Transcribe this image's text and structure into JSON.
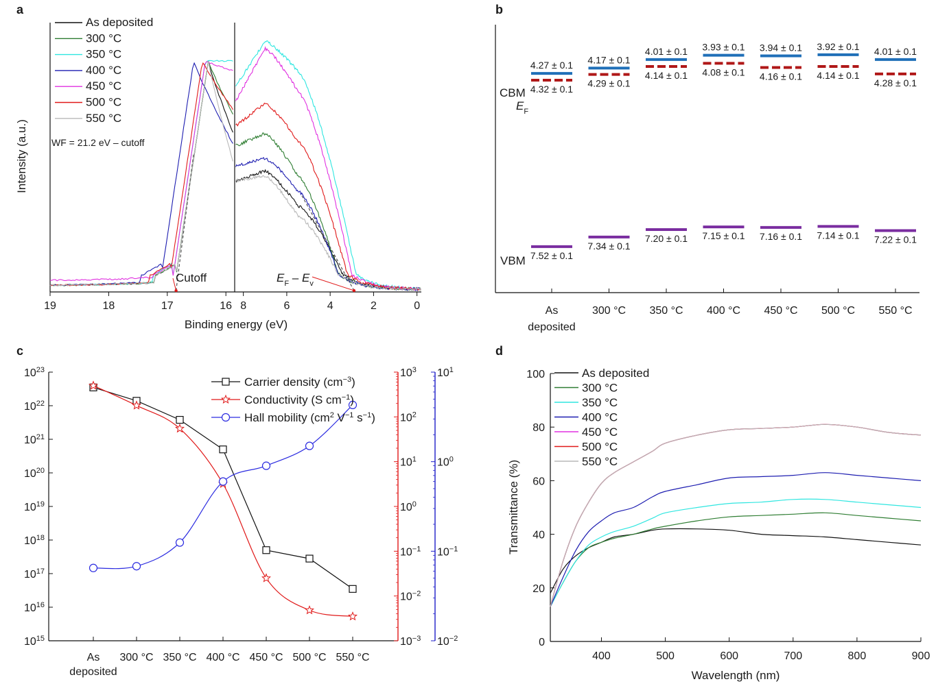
{
  "chart_data": [
    {
      "panel": "a",
      "type": "line",
      "title": "",
      "xlabel": "Binding energy (eV)",
      "ylabel": "Intensity (a.u.)",
      "xlim": [
        19,
        -0.2
      ],
      "xticks": [
        19,
        18,
        17,
        16,
        8,
        6,
        4,
        2,
        0
      ],
      "axis_break_at": 8.4,
      "annotation_wf": "WF = 21.2 eV – cutoff",
      "annotation_cutoff": "Cutoff",
      "annotation_ef_ev": "E",
      "annotation_ef_sub": "F",
      "annotation_minus": " – ",
      "annotation_ev": "E",
      "annotation_ev_sub": "v",
      "cutoff_energy": 16.85,
      "valence_edge_energy": 2.9,
      "series": [
        {
          "name": "As deposited",
          "color": "#111111",
          "cutoff": 16.85,
          "plateau": 0.73,
          "left_mid": 0.62,
          "right_start": 0.44,
          "right_hump": 0.48,
          "right_mid": 0.34,
          "edge": 3.4
        },
        {
          "name": "300 °C",
          "color": "#2e7d32",
          "cutoff": 16.85,
          "plateau": 0.76,
          "left_mid": 0.7,
          "right_start": 0.58,
          "right_hump": 0.63,
          "right_mid": 0.46,
          "edge": 3.6
        },
        {
          "name": "350 °C",
          "color": "#2ee6e0",
          "cutoff": 16.9,
          "plateau": 0.82,
          "left_mid": 0.92,
          "right_start": 0.82,
          "right_hump": 1.0,
          "right_mid": 0.88,
          "edge": 2.8
        },
        {
          "name": "400 °C",
          "color": "#1c1cb0",
          "cutoff": 17.1,
          "plateau": 0.74,
          "left_mid": 0.58,
          "right_start": 0.5,
          "right_hump": 0.53,
          "right_mid": 0.4,
          "edge": 3.6
        },
        {
          "name": "450 °C",
          "color": "#e030e0",
          "cutoff": 16.9,
          "plateau": 0.78,
          "left_mid": 0.88,
          "right_start": 0.76,
          "right_hump": 0.97,
          "right_mid": 0.8,
          "edge": 3.0
        },
        {
          "name": "500 °C",
          "color": "#e01818",
          "cutoff": 16.95,
          "plateau": 0.77,
          "left_mid": 0.72,
          "right_start": 0.66,
          "right_hump": 0.75,
          "right_mid": 0.6,
          "edge": 3.2
        },
        {
          "name": "550 °C",
          "color": "#b8b8b8",
          "cutoff": 16.85,
          "plateau": 0.72,
          "left_mid": 0.5,
          "right_start": 0.44,
          "right_hump": 0.46,
          "right_mid": 0.3,
          "edge": 3.6
        }
      ]
    },
    {
      "panel": "b",
      "type": "level-diagram",
      "ylabel": "",
      "categories": [
        "As deposited",
        "300 °C",
        "350 °C",
        "400 °C",
        "450 °C",
        "500 °C",
        "550 °C"
      ],
      "category_lines": [
        [
          "As",
          "deposited"
        ],
        [
          "300 °C"
        ],
        [
          "350 °C"
        ],
        [
          "400 °C"
        ],
        [
          "450 °C"
        ],
        [
          "500 °C"
        ],
        [
          "550 °C"
        ]
      ],
      "ylim": [
        8.1,
        3.6
      ],
      "level_labels": {
        "cbm": "CBM",
        "ef": "E",
        "ef_sub": "F",
        "vbm": "VBM"
      },
      "cbm": [
        4.27,
        4.17,
        4.01,
        3.93,
        3.94,
        3.92,
        4.01
      ],
      "ef": [
        4.32,
        4.29,
        4.14,
        4.08,
        4.16,
        4.14,
        4.28
      ],
      "vbm": [
        7.52,
        7.34,
        7.2,
        7.15,
        7.16,
        7.14,
        7.22
      ],
      "cbm_labels": [
        "4.27 ± 0.1",
        "4.17 ± 0.1",
        "4.01 ± 0.1",
        "3.93 ± 0.1",
        "3.94 ± 0.1",
        "3.92 ± 0.1",
        "4.01 ± 0.1"
      ],
      "ef_labels": [
        "4.32 ± 0.1",
        "4.29 ± 0.1",
        "4.14 ± 0.1",
        "4.08 ± 0.1",
        "4.16 ± 0.1",
        "4.14 ± 0.1",
        "4.28 ± 0.1"
      ],
      "vbm_labels": [
        "7.52 ± 0.1",
        "7.34 ± 0.1",
        "7.20 ± 0.1",
        "7.15 ± 0.1",
        "7.16 ± 0.1",
        "7.14 ± 0.1",
        "7.22 ± 0.1"
      ],
      "colors": {
        "cbm": "#1f6fb8",
        "ef": "#b01818",
        "vbm": "#7a2da0"
      }
    },
    {
      "panel": "c",
      "type": "line",
      "categories": [
        "As deposited",
        "300 °C",
        "350 °C",
        "400 °C",
        "450 °C",
        "500 °C",
        "550 °C"
      ],
      "category_lines": [
        [
          "As",
          "deposited"
        ],
        [
          "300 °C"
        ],
        [
          "350 °C"
        ],
        [
          "400 °C"
        ],
        [
          "450 °C"
        ],
        [
          "500 °C"
        ],
        [
          "550 °C"
        ]
      ],
      "left_axis": {
        "label": "",
        "log_range": [
          15,
          23
        ],
        "tick_base": "10",
        "exponents": [
          "15",
          "16",
          "17",
          "18",
          "19",
          "20",
          "21",
          "22",
          "23"
        ]
      },
      "right_axis_1": {
        "log_range": [
          -3,
          3
        ],
        "color": "#e01818",
        "tick_base": "10",
        "exponents": [
          "−3",
          "−2",
          "−1",
          "0",
          "1",
          "2",
          "3"
        ]
      },
      "right_axis_2": {
        "log_range": [
          -2,
          1
        ],
        "color": "#1c1cc8",
        "tick_base": "10",
        "exponents": [
          "−2",
          "−1",
          "0",
          "1"
        ]
      },
      "series": [
        {
          "name": "Carrier density",
          "legend": [
            "Carrier density (cm",
            "−3",
            ")"
          ],
          "axis": "left",
          "marker": "square",
          "color": "#111111",
          "values": [
            3.5e+22,
            1.4e+22,
            3.8e+21,
            5e+20,
            5e+17,
            2.8e+17,
            3.5e+16
          ]
        },
        {
          "name": "Conductivity",
          "legend": [
            "Conductivity (S cm",
            "−1",
            ")"
          ],
          "axis": "right_1",
          "marker": "star",
          "color": "#e01818",
          "values": [
            500,
            180,
            55,
            3.2,
            0.025,
            0.0048,
            0.0035
          ]
        },
        {
          "name": "Hall mobility",
          "legend": [
            "Hall mobility (cm",
            "2",
            " V",
            "−1",
            " s",
            "−1",
            ")"
          ],
          "axis": "right_2",
          "marker": "circle",
          "color": "#2a2ae0",
          "values": [
            0.065,
            0.068,
            0.125,
            0.6,
            0.9,
            1.5,
            4.3
          ]
        }
      ]
    },
    {
      "panel": "d",
      "type": "line",
      "xlabel": "Wavelength (nm)",
      "ylabel": "Transmittance (%)",
      "xlim": [
        320,
        900
      ],
      "ylim": [
        0,
        100
      ],
      "xticks": [
        400,
        500,
        600,
        700,
        800,
        900
      ],
      "yticks": [
        0,
        20,
        40,
        60,
        80,
        100
      ],
      "x": [
        320,
        340,
        360,
        380,
        400,
        420,
        450,
        480,
        500,
        550,
        600,
        650,
        700,
        750,
        800,
        850,
        900
      ],
      "series": [
        {
          "name": "As deposited",
          "color": "#111111",
          "values": [
            18,
            27,
            32,
            35,
            37,
            39,
            40,
            41.5,
            42,
            42,
            41.5,
            40,
            39.5,
            39,
            38,
            37,
            36
          ]
        },
        {
          "name": "300 °C",
          "color": "#2e7d32",
          "values": [
            13,
            22,
            30,
            35,
            37,
            38.5,
            40,
            42,
            43,
            45,
            46.5,
            47,
            47.5,
            48,
            47,
            46,
            45
          ]
        },
        {
          "name": "350 °C",
          "color": "#2ee6e0",
          "values": [
            13,
            22,
            30,
            36,
            39,
            41,
            43,
            46,
            48,
            50,
            51.5,
            52,
            53,
            53,
            52,
            51,
            50
          ]
        },
        {
          "name": "400 °C",
          "color": "#1c1cb0",
          "values": [
            13,
            24,
            34,
            41,
            45,
            48,
            50,
            54,
            56,
            58.5,
            61,
            61.5,
            62,
            63,
            62,
            61,
            60
          ]
        },
        {
          "name": "450 °C",
          "color": "#e030e0",
          "values": [
            13,
            30,
            43,
            52,
            59,
            63,
            67,
            71,
            74,
            77,
            79,
            79.5,
            80,
            81,
            80,
            78,
            77
          ]
        },
        {
          "name": "500 °C",
          "color": "#e01818",
          "values": [
            13,
            30,
            43,
            52,
            59,
            63,
            67,
            71,
            74,
            77,
            79,
            79.5,
            80,
            81,
            80,
            78,
            77
          ]
        },
        {
          "name": "550 °C",
          "color": "#b8b8b8",
          "values": [
            13,
            30,
            43,
            52,
            59,
            63,
            67,
            71,
            74,
            77,
            79,
            79.5,
            80,
            81,
            80,
            78,
            77
          ]
        }
      ]
    }
  ]
}
